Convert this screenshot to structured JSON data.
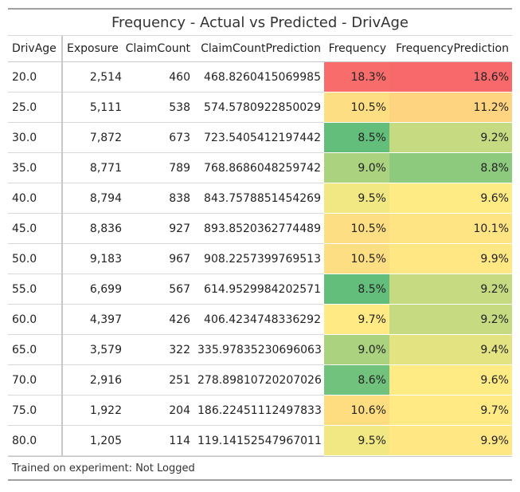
{
  "chart_data": {
    "type": "table",
    "title": "Frequency - Actual vs Predicted - DrivAge",
    "columns": [
      "DrivAge",
      "Exposure",
      "ClaimCount",
      "ClaimCountPrediction",
      "Frequency",
      "FrequencyPrediction"
    ],
    "rows": [
      [
        "20.0",
        "2,514",
        "460",
        "468.8260415069985",
        "18.3%",
        "18.6%"
      ],
      [
        "25.0",
        "5,111",
        "538",
        "574.5780922850029",
        "10.5%",
        "11.2%"
      ],
      [
        "30.0",
        "7,872",
        "673",
        "723.5405412197442",
        "8.5%",
        "9.2%"
      ],
      [
        "35.0",
        "8,771",
        "789",
        "768.8686048259742",
        "9.0%",
        "8.8%"
      ],
      [
        "40.0",
        "8,794",
        "838",
        "843.7578851454269",
        "9.5%",
        "9.6%"
      ],
      [
        "45.0",
        "8,836",
        "927",
        "893.8520362774489",
        "10.5%",
        "10.1%"
      ],
      [
        "50.0",
        "9,183",
        "967",
        "908.2257399769513",
        "10.5%",
        "9.9%"
      ],
      [
        "55.0",
        "6,699",
        "567",
        "614.9529984202571",
        "8.5%",
        "9.2%"
      ],
      [
        "60.0",
        "4,397",
        "426",
        "406.4234748336292",
        "9.7%",
        "9.2%"
      ],
      [
        "65.0",
        "3,579",
        "322",
        "335.97835230696063",
        "9.0%",
        "9.4%"
      ],
      [
        "70.0",
        "2,916",
        "251",
        "278.89810720207026",
        "8.6%",
        "9.6%"
      ],
      [
        "75.0",
        "1,922",
        "204",
        "186.22451112497833",
        "10.6%",
        "9.7%"
      ],
      [
        "80.0",
        "1,205",
        "114",
        "119.14152547967011",
        "9.5%",
        "9.9%"
      ]
    ],
    "color_scale": {
      "low": "#63be7b",
      "mid": "#ffeb84",
      "high": "#f8696b",
      "applies_to": [
        "Frequency",
        "FrequencyPrediction"
      ]
    }
  },
  "footer": "Trained on experiment: Not Logged"
}
